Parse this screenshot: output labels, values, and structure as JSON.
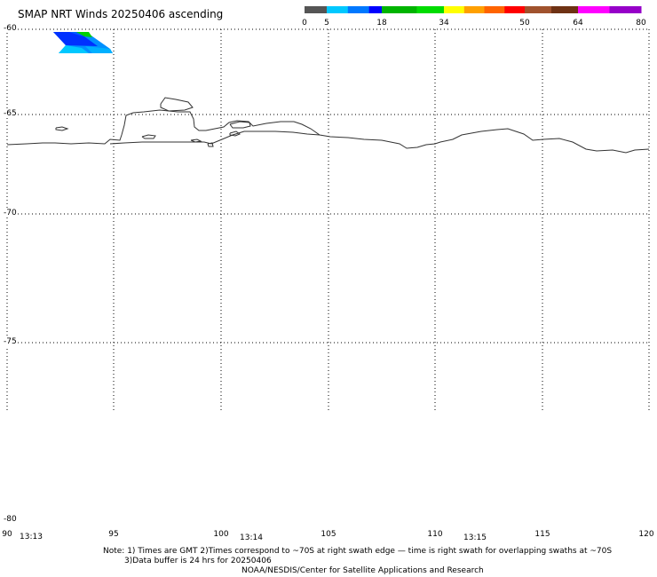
{
  "title": "SMAP NRT Winds 20250406 ascending",
  "colorbar": {
    "tick_labels": [
      "0",
      "5",
      "18",
      "34",
      "50",
      "64",
      "80"
    ],
    "segments": [
      {
        "from": 0,
        "to": 5,
        "color": "#555555"
      },
      {
        "from": 5,
        "to": 10,
        "color": "#00c8ff"
      },
      {
        "from": 10,
        "to": 15,
        "color": "#0078ff"
      },
      {
        "from": 15,
        "to": 18,
        "color": "#0000ff"
      },
      {
        "from": 18,
        "to": 27,
        "color": "#00b400"
      },
      {
        "from": 27,
        "to": 34,
        "color": "#00dc00"
      },
      {
        "from": 34,
        "to": 38,
        "color": "#ffff00"
      },
      {
        "from": 38,
        "to": 42,
        "color": "#ffa000"
      },
      {
        "from": 42,
        "to": 46,
        "color": "#ff6400"
      },
      {
        "from": 46,
        "to": 50,
        "color": "#ff0000"
      },
      {
        "from": 50,
        "to": 57,
        "color": "#a0522d"
      },
      {
        "from": 57,
        "to": 64,
        "color": "#6e3214"
      },
      {
        "from": 64,
        "to": 72,
        "color": "#ff00ff"
      },
      {
        "from": 72,
        "to": 80,
        "color": "#9600c8"
      }
    ]
  },
  "map": {
    "lat_range": [
      -80,
      -60
    ],
    "lon_range": [
      90,
      120
    ],
    "lat_ticks": [
      "-60",
      "-65",
      "-70",
      "-75",
      "-80"
    ],
    "lon_ticks": [
      "90",
      "95",
      "100",
      "105",
      "110",
      "115",
      "120"
    ]
  },
  "times": [
    "13:13",
    "13:14",
    "13:15"
  ],
  "notes": {
    "line1": "Note: 1) Times are GMT 2)Times correspond to ~70S at right swath edge — time is right swath for overlapping swaths at ~70S",
    "line2": "3)Data buffer is 24 hrs for 20250406",
    "line3": "NOAA/NESDIS/Center for Satellite Applications and Research"
  }
}
